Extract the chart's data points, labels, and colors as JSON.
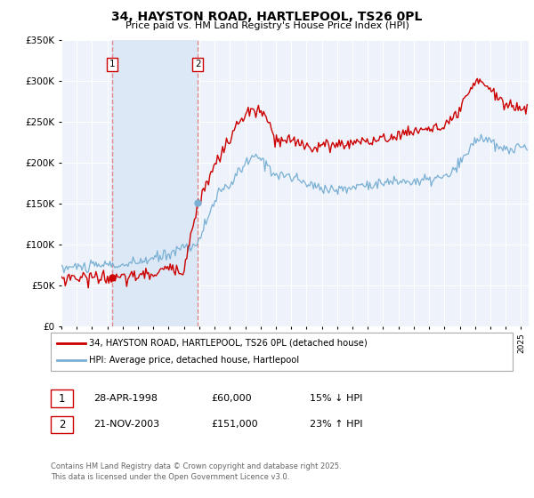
{
  "title": "34, HAYSTON ROAD, HARTLEPOOL, TS26 0PL",
  "subtitle": "Price paid vs. HM Land Registry's House Price Index (HPI)",
  "ylim": [
    0,
    350000
  ],
  "xlim_start": 1995.0,
  "xlim_end": 2025.5,
  "sale1_date": 1998.33,
  "sale1_price": 60000,
  "sale1_label": "1",
  "sale2_date": 2003.9,
  "sale2_price": 151000,
  "sale2_label": "2",
  "line_color_red": "#cc0000",
  "line_color_blue": "#7ab0d4",
  "shade_color": "#dce8f5",
  "vline_color": "#e08080",
  "background_color": "#eef2fb",
  "grid_color": "#ffffff",
  "legend_line1": "34, HAYSTON ROAD, HARTLEPOOL, TS26 0PL (detached house)",
  "legend_line2": "HPI: Average price, detached house, Hartlepool",
  "table_row1": [
    "1",
    "28-APR-1998",
    "£60,000",
    "15% ↓ HPI"
  ],
  "table_row2": [
    "2",
    "21-NOV-2003",
    "£151,000",
    "23% ↑ HPI"
  ],
  "footer": "Contains HM Land Registry data © Crown copyright and database right 2025.\nThis data is licensed under the Open Government Licence v3.0.",
  "xlabel_years": [
    1995,
    1996,
    1997,
    1998,
    1999,
    2000,
    2001,
    2002,
    2003,
    2004,
    2005,
    2006,
    2007,
    2008,
    2009,
    2010,
    2011,
    2012,
    2013,
    2014,
    2015,
    2016,
    2017,
    2018,
    2019,
    2020,
    2021,
    2022,
    2023,
    2024,
    2025
  ]
}
